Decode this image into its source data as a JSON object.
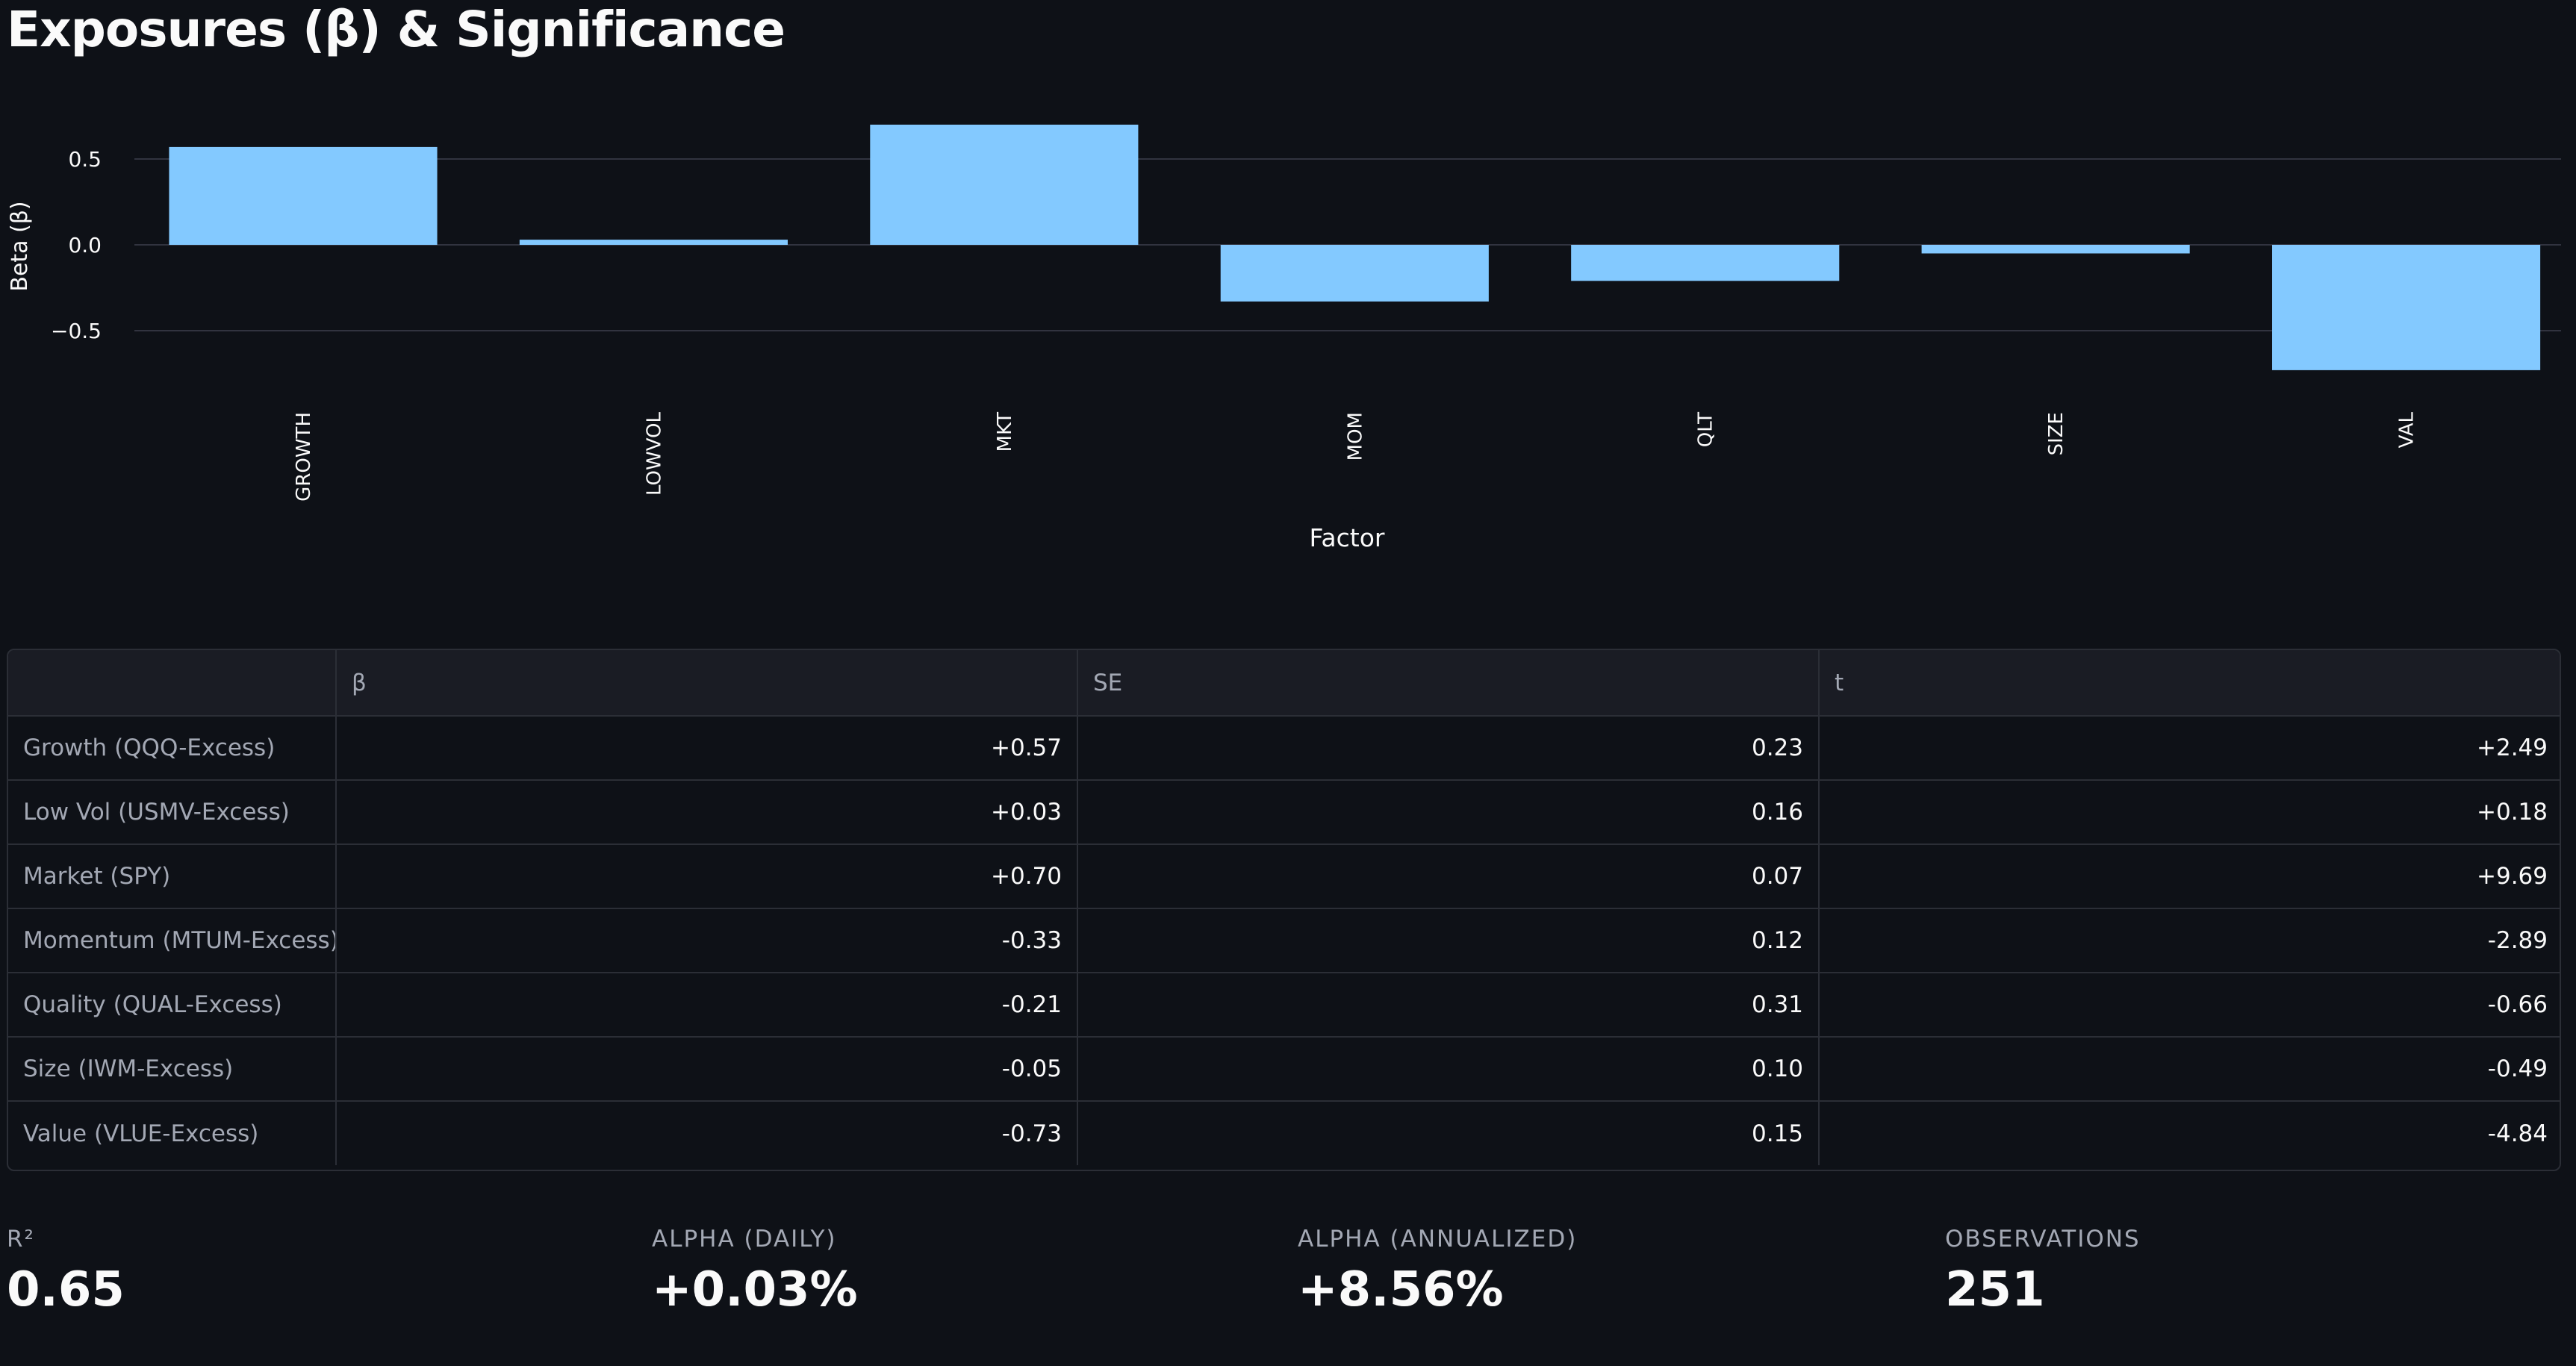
{
  "page": {
    "title": "Exposures (β) & Significance"
  },
  "chart_data": {
    "type": "bar",
    "categories": [
      "GROWTH",
      "LOWVOL",
      "MKT",
      "MOM",
      "QLT",
      "SIZE",
      "VAL"
    ],
    "values": [
      0.57,
      0.03,
      0.7,
      -0.33,
      -0.21,
      -0.05,
      -0.73
    ],
    "xlabel": "Factor",
    "ylabel": "Beta (β)",
    "yticks": [
      0.5,
      0.0,
      -0.5
    ],
    "ytick_labels": [
      "0.5",
      "0.0",
      "−0.5"
    ],
    "ylim": [
      -0.9,
      0.85
    ],
    "grid": true,
    "bar_color": "#83c9ff",
    "gridline_color": "#31333f"
  },
  "table": {
    "headers": [
      "",
      "β",
      "SE",
      "t"
    ],
    "rows": [
      {
        "label": "Growth (QQQ-Excess)",
        "beta": "+0.57",
        "se": "0.23",
        "t": "+2.49"
      },
      {
        "label": "Low Vol (USMV-Excess)",
        "beta": "+0.03",
        "se": "0.16",
        "t": "+0.18"
      },
      {
        "label": "Market (SPY)",
        "beta": "+0.70",
        "se": "0.07",
        "t": "+9.69"
      },
      {
        "label": "Momentum (MTUM-Excess)",
        "beta": "-0.33",
        "se": "0.12",
        "t": "-2.89"
      },
      {
        "label": "Quality (QUAL-Excess)",
        "beta": "-0.21",
        "se": "0.31",
        "t": "-0.66"
      },
      {
        "label": "Size (IWM-Excess)",
        "beta": "-0.05",
        "se": "0.10",
        "t": "-0.49"
      },
      {
        "label": "Value (VLUE-Excess)",
        "beta": "-0.73",
        "se": "0.15",
        "t": "-4.84"
      }
    ]
  },
  "metrics": {
    "r2": {
      "label": "R²",
      "value": "0.65"
    },
    "alpha_daily": {
      "label": "ALPHA (DAILY)",
      "value": "+0.03%"
    },
    "alpha_annualized": {
      "label": "ALPHA (ANNUALIZED)",
      "value": "+8.56%"
    },
    "observations": {
      "label": "OBSERVATIONS",
      "value": "251"
    }
  },
  "colors": {
    "background": "#0e1117",
    "text": "#fafafa",
    "muted_text": "#a3a8b4",
    "table_header_bg": "#1a1c24",
    "border": "#2b2e36"
  }
}
